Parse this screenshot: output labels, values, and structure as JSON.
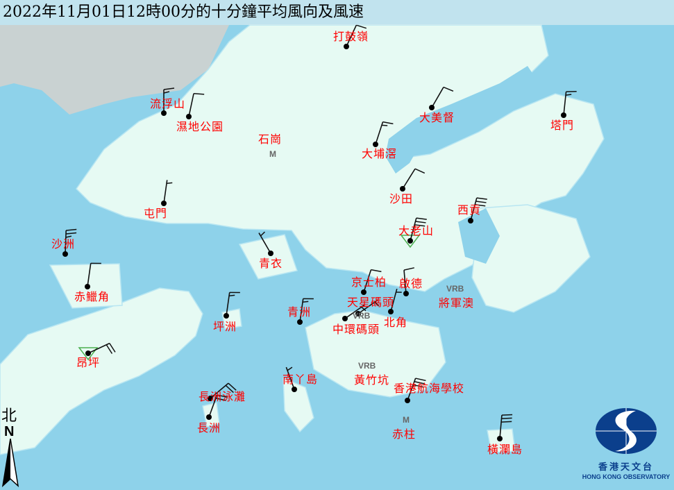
{
  "title": "2022年11月01日12時00分的十分鐘平均風向及風速",
  "colors": {
    "sea": "#8ed2ea",
    "land": "#e6faf3",
    "label": "#ff0000",
    "barb": "#000000",
    "triangle": "#4caf50",
    "logo": "#0b3f8c"
  },
  "north_arrow": {
    "label_zh": "北",
    "label_en": "N"
  },
  "logo": {
    "name_zh": "香港天文台",
    "name_en": "HONG KONG OBSERVATORY"
  },
  "stations": [
    {
      "name": "打鼓嶺",
      "dir_deg": 25,
      "speed_kt": 10
    },
    {
      "name": "流浮山",
      "dir_deg": 0,
      "speed_kt": 15
    },
    {
      "name": "濕地公園",
      "dir_deg": 12,
      "speed_kt": 10
    },
    {
      "name": "大美督",
      "dir_deg": 30,
      "speed_kt": 10
    },
    {
      "name": "塔門",
      "dir_deg": 6,
      "speed_kt": 15
    },
    {
      "name": "大埔滘",
      "dir_deg": 18,
      "speed_kt": 15
    },
    {
      "name": "沙田",
      "dir_deg": 32,
      "speed_kt": 10
    },
    {
      "name": "屯門",
      "dir_deg": 8,
      "speed_kt": 5
    },
    {
      "name": "沙洲",
      "dir_deg": 2,
      "speed_kt": 25
    },
    {
      "name": "赤鱲角",
      "dir_deg": 8,
      "speed_kt": 10
    },
    {
      "name": "昂坪",
      "dir_deg": 65,
      "speed_kt": 20,
      "marker": "triangle"
    },
    {
      "name": "大老山",
      "dir_deg": 15,
      "speed_kt": 30,
      "marker": "triangle"
    },
    {
      "name": "西貢",
      "dir_deg": 15,
      "speed_kt": 30
    },
    {
      "name": "青衣",
      "dir_deg": 330,
      "speed_kt": 5
    },
    {
      "name": "京士柏",
      "dir_deg": 18,
      "speed_kt": 10
    },
    {
      "name": "啟德",
      "dir_deg": 355,
      "speed_kt": 10
    },
    {
      "name": "天星碼頭",
      "dir_deg": 55,
      "speed_kt": 5
    },
    {
      "name": "中環碼頭",
      "dir_deg": 55,
      "speed_kt": 5
    },
    {
      "name": "北角",
      "dir_deg": 15,
      "speed_kt": 5
    },
    {
      "name": "青洲",
      "dir_deg": 8,
      "speed_kt": 15
    },
    {
      "name": "坪洲",
      "dir_deg": 8,
      "speed_kt": 15
    },
    {
      "name": "長洲泳灘",
      "dir_deg": 50,
      "speed_kt": 20
    },
    {
      "name": "長洲",
      "dir_deg": 20,
      "speed_kt": 20
    },
    {
      "name": "南丫島",
      "dir_deg": 340,
      "speed_kt": 5
    },
    {
      "name": "香港航海學校",
      "dir_deg": 20,
      "speed_kt": 30
    },
    {
      "name": "橫瀾島",
      "dir_deg": 5,
      "speed_kt": 30
    }
  ],
  "other_labels": [
    {
      "name": "石崗",
      "marker": "M"
    },
    {
      "name": "將軍澳",
      "marker": "VRB"
    },
    {
      "name": "黃竹坑",
      "marker": "VRB"
    },
    {
      "name": "赤柱",
      "marker": "M"
    }
  ],
  "vrb_label": "VRB"
}
